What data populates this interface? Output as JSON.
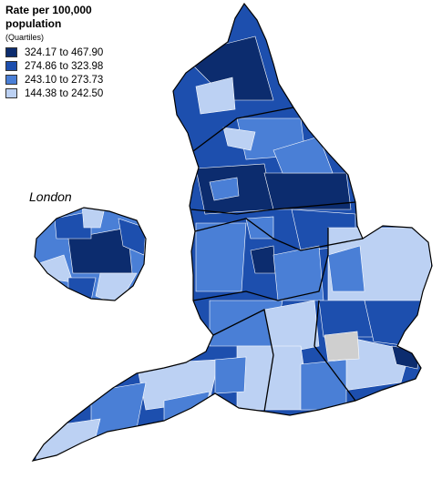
{
  "legend": {
    "title": "Rate per 100,000 population",
    "subtitle": "(Quartiles)",
    "items": [
      {
        "label": "324.17 to 467.90",
        "color": "#0c2c6e"
      },
      {
        "label": "274.86 to 323.98",
        "color": "#1d4fae"
      },
      {
        "label": "243.10 to 273.73",
        "color": "#4a7fd6"
      },
      {
        "label": "144.38 to 242.50",
        "color": "#bcd1f3"
      }
    ],
    "no_data_color": "#cfcfcf"
  },
  "inset": {
    "label": "London"
  }
}
